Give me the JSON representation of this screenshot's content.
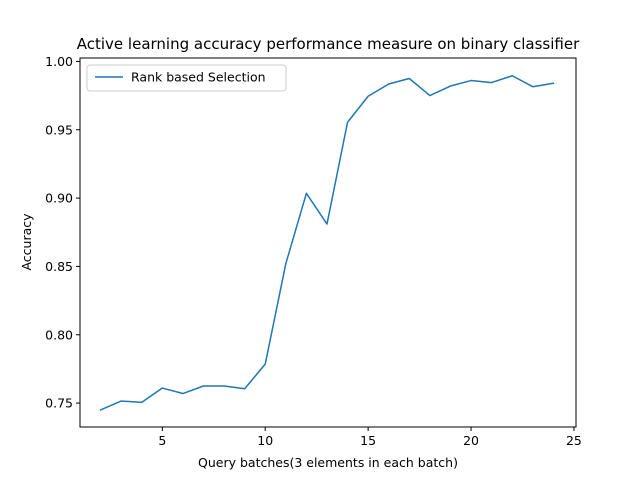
{
  "chart_data": {
    "type": "line",
    "title": "Active learning accuracy performance measure on binary classifier",
    "xlabel": "Query batches(3 elements in each batch)",
    "ylabel": "Accuracy",
    "xlim": [
      1.0,
      25.1
    ],
    "ylim": [
      0.7325,
      1.0025
    ],
    "xticks": [
      5,
      10,
      15,
      20,
      25
    ],
    "xtick_labels": [
      "5",
      "10",
      "15",
      "20",
      "25"
    ],
    "yticks": [
      0.75,
      0.8,
      0.85,
      0.9,
      0.95,
      1.0
    ],
    "ytick_labels": [
      "0.75",
      "0.80",
      "0.85",
      "0.90",
      "0.95",
      "1.00"
    ],
    "grid": false,
    "legend_position": "upper-left",
    "series": [
      {
        "name": "Rank based Selection",
        "color": "#1f77b4",
        "x": [
          2,
          3,
          4,
          5,
          6,
          7,
          8,
          9,
          10,
          11,
          12,
          13,
          14,
          15,
          16,
          17,
          18,
          19,
          20,
          21,
          22,
          23,
          24
        ],
        "y": [
          0.745,
          0.7515,
          0.7505,
          0.761,
          0.757,
          0.7625,
          0.7625,
          0.7605,
          0.7785,
          0.852,
          0.9035,
          0.881,
          0.9555,
          0.9745,
          0.9835,
          0.9875,
          0.975,
          0.982,
          0.986,
          0.9845,
          0.9895,
          0.9815,
          0.984
        ]
      }
    ]
  }
}
